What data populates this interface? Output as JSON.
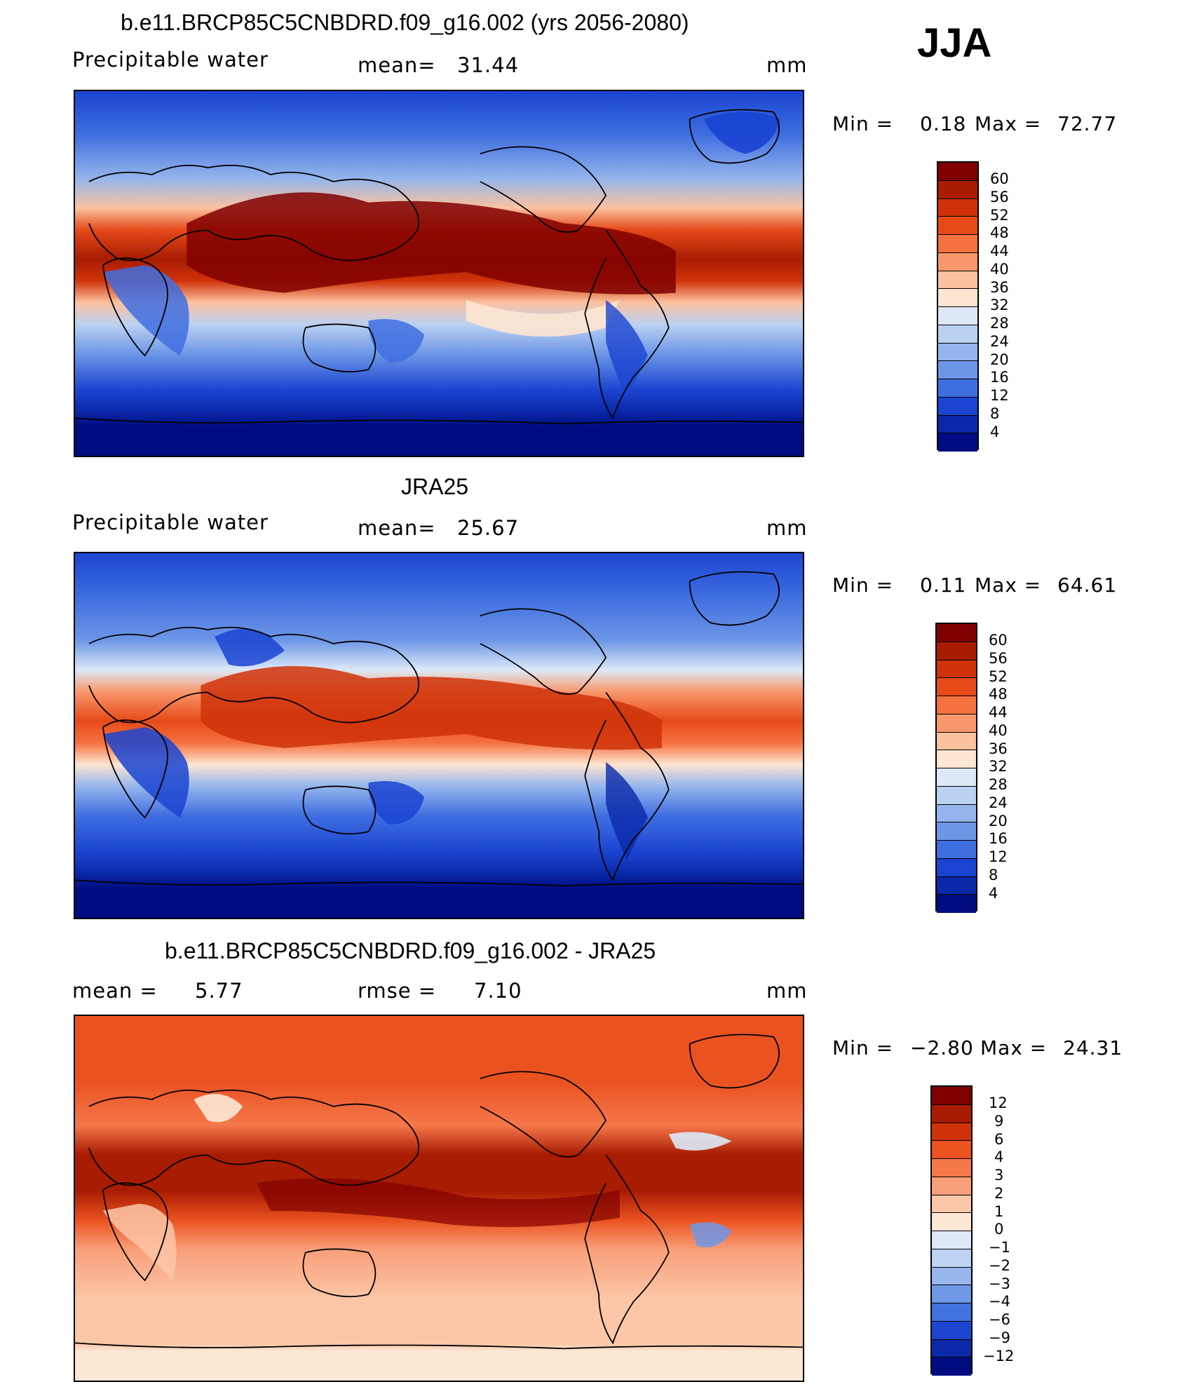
{
  "season": "JJA",
  "panels": [
    {
      "title": "b.e11.BRCP85C5CNBDRD.f09_g16.002 (yrs 2056-2080)",
      "variable": "Precipitable water",
      "stat1_label": "mean=",
      "stat1_value": "31.44",
      "units": "mm",
      "min_label": "Min =",
      "min_value": "0.18",
      "max_label": "Max =",
      "max_value": "72.77",
      "colorbar_labels": [
        "60",
        "56",
        "52",
        "48",
        "44",
        "40",
        "36",
        "32",
        "28",
        "24",
        "20",
        "16",
        "12",
        "8",
        "4"
      ]
    },
    {
      "title": "JRA25",
      "variable": "Precipitable water",
      "stat1_label": "mean=",
      "stat1_value": "25.67",
      "units": "mm",
      "min_label": "Min =",
      "min_value": "0.11",
      "max_label": "Max =",
      "max_value": "64.61",
      "colorbar_labels": [
        "60",
        "56",
        "52",
        "48",
        "44",
        "40",
        "36",
        "32",
        "28",
        "24",
        "20",
        "16",
        "12",
        "8",
        "4"
      ]
    },
    {
      "title": "b.e11.BRCP85C5CNBDRD.f09_g16.002 - JRA25",
      "variable": "",
      "stat1_label": "mean =",
      "stat1_value": "5.77",
      "stat2_label": "rmse =",
      "stat2_value": "7.10",
      "units": "mm",
      "min_label": "Min =",
      "min_value": "−2.80",
      "max_label": "Max =",
      "max_value": "24.31",
      "colorbar_labels": [
        "12",
        "9",
        "6",
        "4",
        "3",
        "2",
        "1",
        "0",
        "−1",
        "−2",
        "−3",
        "−4",
        "−6",
        "−9",
        "−12"
      ]
    }
  ],
  "colors": {
    "abs_scale": [
      "#800000",
      "#a81c02",
      "#cf3208",
      "#e64a19",
      "#f5713e",
      "#f9976c",
      "#fbc2a0",
      "#fde6d2",
      "#dde9f8",
      "#bbd1f2",
      "#94b5ec",
      "#6d97e6",
      "#3f6ee0",
      "#1a44d1",
      "#0a28a8",
      "#000c80"
    ],
    "diff_scale": [
      "#800000",
      "#a81c02",
      "#cf3208",
      "#ea5220",
      "#f5784a",
      "#f99f79",
      "#fbc7a8",
      "#fde8d6",
      "#dde9f8",
      "#bed3f3",
      "#97b7ed",
      "#6f98e6",
      "#4271e0",
      "#1c45d2",
      "#0b29a9",
      "#000c80"
    ]
  }
}
